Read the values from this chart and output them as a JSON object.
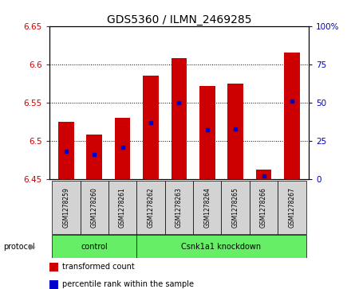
{
  "title": "GDS5360 / ILMN_2469285",
  "samples": [
    "GSM1278259",
    "GSM1278260",
    "GSM1278261",
    "GSM1278262",
    "GSM1278263",
    "GSM1278264",
    "GSM1278265",
    "GSM1278266",
    "GSM1278267"
  ],
  "transformed_counts": [
    6.525,
    6.508,
    6.53,
    6.585,
    6.608,
    6.572,
    6.575,
    6.463,
    6.615
  ],
  "percentile_ranks": [
    18,
    16,
    21,
    37,
    50,
    32,
    33,
    2,
    51
  ],
  "ylim_left": [
    6.45,
    6.65
  ],
  "ylim_right": [
    0,
    100
  ],
  "yticks_left": [
    6.45,
    6.5,
    6.55,
    6.6,
    6.65
  ],
  "yticks_right": [
    0,
    25,
    50,
    75,
    100
  ],
  "bar_color": "#cc0000",
  "marker_color": "#0000cc",
  "bar_width": 0.55,
  "ctrl_count": 3,
  "protocol_label": "protocol",
  "group_labels": [
    "control",
    "Csnk1a1 knockdown"
  ],
  "legend_items": [
    {
      "label": "transformed count",
      "color": "#cc0000"
    },
    {
      "label": "percentile rank within the sample",
      "color": "#0000cc"
    }
  ],
  "left_tick_color": "#cc0000",
  "right_tick_color": "#0000bb",
  "title_fontsize": 10,
  "background_color": "#ffffff",
  "plot_bg_color": "#ffffff",
  "sample_box_color": "#d3d3d3",
  "group_box_color": "#66ee66",
  "grid_ticks": [
    6.5,
    6.55,
    6.6
  ]
}
